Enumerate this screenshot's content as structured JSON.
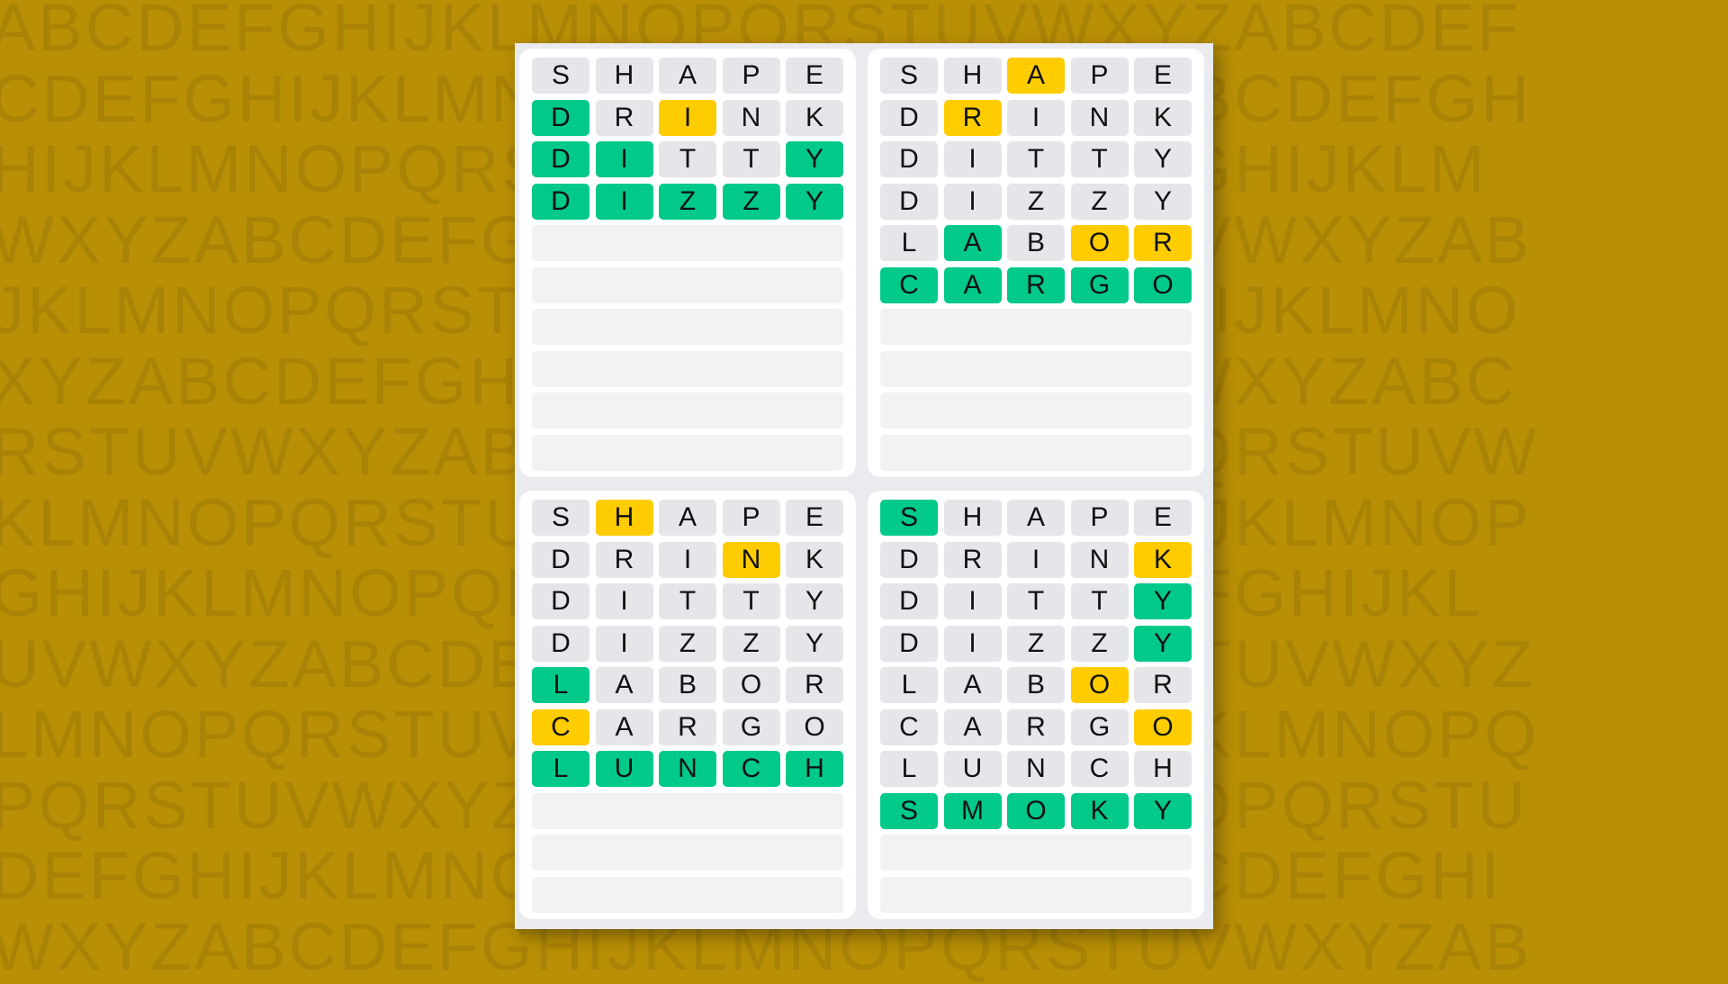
{
  "background_letters": [
    "ABCDEFGHIJKLMNOPQRSTUVWXYZABCDEF",
    "CDEFGHIJKLMNOPQRSTUVWXYZABCDEFGH",
    "HIJKLMNOPQRSTUVWXYZABCDEFGHIJKLM",
    "WXYZABCDEFGHIJKLMNOPQRSTUVWXYZAB",
    "JKLMNOPQRSTUVWXYZABCDEFGHIJKLMNO",
    "XYZABCDEFGHIJKLMNOPQRSTUVWXYZABC",
    "RSTUVWXYZABCDEFGHIJKLMNOPQRSTUVW",
    "KLMNOPQRSTUVWXYZABCDEFGHIJKLMNOP",
    "GHIJKLMNOPQRSTUVWXYZABCDEFGHIJKL",
    "UVWXYZABCDEFGHIJKLMNOPQRSTUVWXYZ",
    "LMNOPQRSTUVWXYZABCDEFGHIJKLMNOPQ",
    "PQRSTUVWXYZABCDEFGHIJKLMNOPQRSTU",
    "DEFGHIJKLMNOPQRSTUVWXYZABCDEFGHI",
    "WXYZABCDEFGHIJKLMNOPQRSTUVWXYZAB"
  ],
  "colors": {
    "correct": "#00c98a",
    "present": "#ffcc00",
    "absent": "#e5e5ea",
    "empty": "#f2f2f5",
    "background": "#b98f06"
  },
  "total_rows": 10,
  "boards": [
    {
      "guesses": [
        {
          "word": "SHAPE",
          "states": "xxxxx"
        },
        {
          "word": "DRINK",
          "states": "gxyxx"
        },
        {
          "word": "DITTY",
          "states": "ggxxg"
        },
        {
          "word": "DIZZY",
          "states": "ggggg"
        }
      ]
    },
    {
      "guesses": [
        {
          "word": "SHAPE",
          "states": "xxyxx"
        },
        {
          "word": "DRINK",
          "states": "xyxxx"
        },
        {
          "word": "DITTY",
          "states": "xxxxx"
        },
        {
          "word": "DIZZY",
          "states": "xxxxx"
        },
        {
          "word": "LABOR",
          "states": "xgxyy"
        },
        {
          "word": "CARGO",
          "states": "ggggg"
        }
      ]
    },
    {
      "guesses": [
        {
          "word": "SHAPE",
          "states": "xyxxx"
        },
        {
          "word": "DRINK",
          "states": "xxxyx"
        },
        {
          "word": "DITTY",
          "states": "xxxxx"
        },
        {
          "word": "DIZZY",
          "states": "xxxxx"
        },
        {
          "word": "LABOR",
          "states": "gxxxx"
        },
        {
          "word": "CARGO",
          "states": "yxxxx"
        },
        {
          "word": "LUNCH",
          "states": "ggggg"
        }
      ]
    },
    {
      "guesses": [
        {
          "word": "SHAPE",
          "states": "gxxxx"
        },
        {
          "word": "DRINK",
          "states": "xxxxy"
        },
        {
          "word": "DITTY",
          "states": "xxxxg"
        },
        {
          "word": "DIZZY",
          "states": "xxxxg"
        },
        {
          "word": "LABOR",
          "states": "xxxyx"
        },
        {
          "word": "CARGO",
          "states": "xxxxy"
        },
        {
          "word": "LUNCH",
          "states": "xxxxx"
        },
        {
          "word": "SMOKY",
          "states": "ggggg"
        }
      ]
    }
  ]
}
